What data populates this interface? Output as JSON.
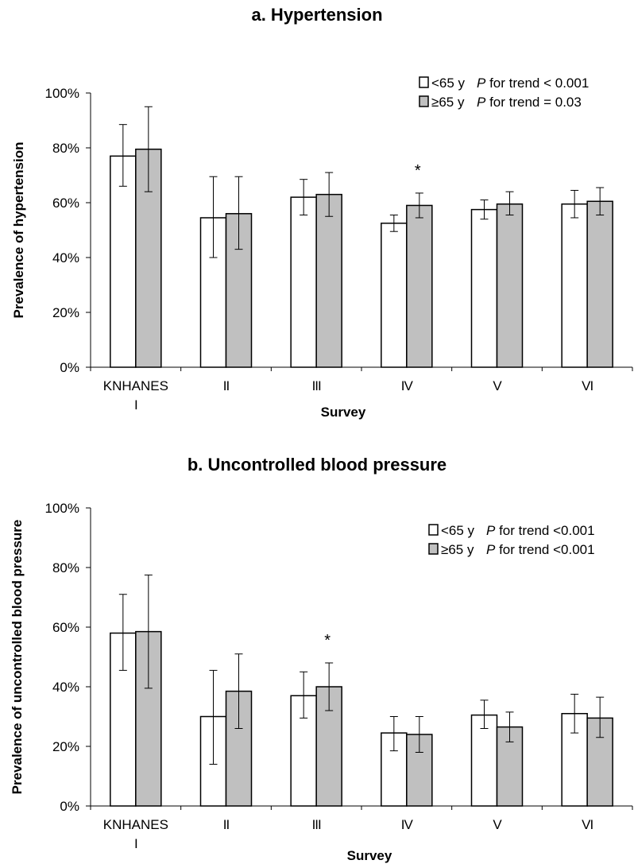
{
  "chart_data": [
    {
      "type": "bar",
      "title": "a. Hypertension",
      "xlabel": "Survey",
      "ylabel": "Prevalence of hypertension",
      "ylim": [
        0,
        100
      ],
      "yticks": [
        "0%",
        "20%",
        "40%",
        "60%",
        "80%",
        "100%"
      ],
      "categories": [
        "KNHANES\nI",
        "II",
        "III",
        "IV",
        "V",
        "VI"
      ],
      "grid": false,
      "legend_position": "top-right",
      "series": [
        {
          "name": "<65 y",
          "color": "#ffffff",
          "values": [
            77,
            54.5,
            62,
            52.5,
            57.5,
            59.5
          ],
          "error_low": [
            66,
            40,
            55.5,
            49.5,
            54,
            54.5
          ],
          "error_high": [
            88.5,
            69.5,
            68.5,
            55.5,
            61,
            64.5
          ]
        },
        {
          "name": "≥65 y",
          "color": "#c0c0c0",
          "values": [
            79.5,
            56,
            63,
            59,
            59.5,
            60.5
          ],
          "error_low": [
            64,
            43,
            55,
            54.5,
            55.5,
            55.5
          ],
          "error_high": [
            95,
            69.5,
            71,
            63.5,
            64,
            65.5
          ]
        }
      ],
      "legend_notes": [
        "P for trend < 0.001",
        "P for trend = 0.03"
      ],
      "annotations": [
        {
          "category_index": 3,
          "text": "*"
        }
      ]
    },
    {
      "type": "bar",
      "title": "b. Uncontrolled blood pressure",
      "xlabel": "Survey",
      "ylabel": "Prevalence of uncontrolled blood pressure",
      "ylim": [
        0,
        100
      ],
      "yticks": [
        "0%",
        "20%",
        "40%",
        "60%",
        "80%",
        "100%"
      ],
      "categories": [
        "KNHANES\nI",
        "II",
        "III",
        "IV",
        "V",
        "VI"
      ],
      "grid": false,
      "legend_position": "top-right",
      "series": [
        {
          "name": "<65 y",
          "color": "#ffffff",
          "values": [
            58,
            30,
            37,
            24.5,
            30.5,
            31
          ],
          "error_low": [
            45.5,
            14,
            29.5,
            18.5,
            26,
            24.5
          ],
          "error_high": [
            71,
            45.5,
            45,
            30,
            35.5,
            37.5
          ]
        },
        {
          "name": "≥65 y",
          "color": "#c0c0c0",
          "values": [
            58.5,
            38.5,
            40,
            24,
            26.5,
            29.5
          ],
          "error_low": [
            39.5,
            26,
            32,
            18,
            21.5,
            23
          ],
          "error_high": [
            77.5,
            51,
            48,
            30,
            31.5,
            36.5
          ]
        }
      ],
      "legend_notes": [
        "P for trend <0.001",
        "P for trend <0.001"
      ],
      "annotations": [
        {
          "category_index": 2,
          "text": "*"
        }
      ]
    }
  ]
}
